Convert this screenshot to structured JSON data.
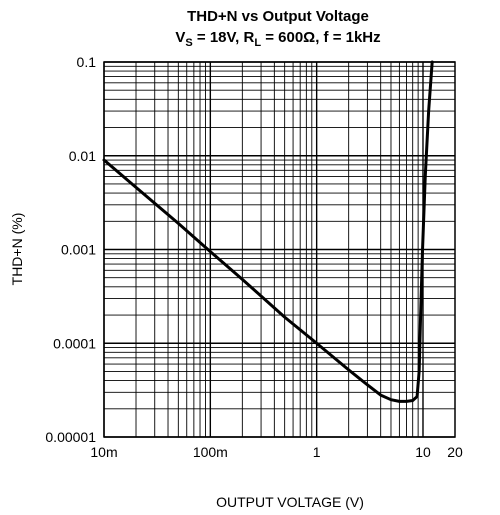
{
  "chart_data": {
    "type": "line",
    "title": "THD+N vs Output Voltage",
    "subtitle_parts": {
      "vs_main": "V",
      "vs_sub": "S",
      "vs_value": " = 18V, ",
      "rl_main": "R",
      "rl_sub": "L",
      "rl_value": " = 600Ω, f = 1kHz"
    },
    "xlabel": "OUTPUT VOLTAGE (V)",
    "ylabel": "THD+N (%)",
    "x_scale": "log",
    "y_scale": "log",
    "xlim": [
      0.01,
      20
    ],
    "ylim": [
      1e-05,
      0.1
    ],
    "grid": true,
    "x_ticks": [
      {
        "value": 0.01,
        "label": "10m"
      },
      {
        "value": 0.1,
        "label": "100m"
      },
      {
        "value": 1,
        "label": "1"
      },
      {
        "value": 10,
        "label": "10"
      },
      {
        "value": 20,
        "label": "20"
      }
    ],
    "y_ticks": [
      {
        "value": 0.1,
        "label": "0.1"
      },
      {
        "value": 0.01,
        "label": "0.01"
      },
      {
        "value": 0.001,
        "label": "0.001"
      },
      {
        "value": 0.0001,
        "label": "0.0001"
      },
      {
        "value": 1e-05,
        "label": "0.00001"
      }
    ],
    "series": [
      {
        "x": [
          0.01,
          0.02,
          0.05,
          0.1,
          0.2,
          0.5,
          1,
          2,
          3,
          4,
          5,
          6,
          7,
          8,
          8.8,
          9.2,
          9.5,
          9.9,
          10.5,
          11.3,
          12.2
        ],
        "y": [
          0.009,
          0.0046,
          0.0019,
          0.00095,
          0.00048,
          0.00019,
          0.0001,
          5.2e-05,
          3.6e-05,
          2.8e-05,
          2.5e-05,
          2.4e-05,
          2.4e-05,
          2.45e-05,
          2.7e-05,
          5e-05,
          0.0002,
          0.001,
          0.006,
          0.03,
          0.1
        ]
      }
    ]
  }
}
